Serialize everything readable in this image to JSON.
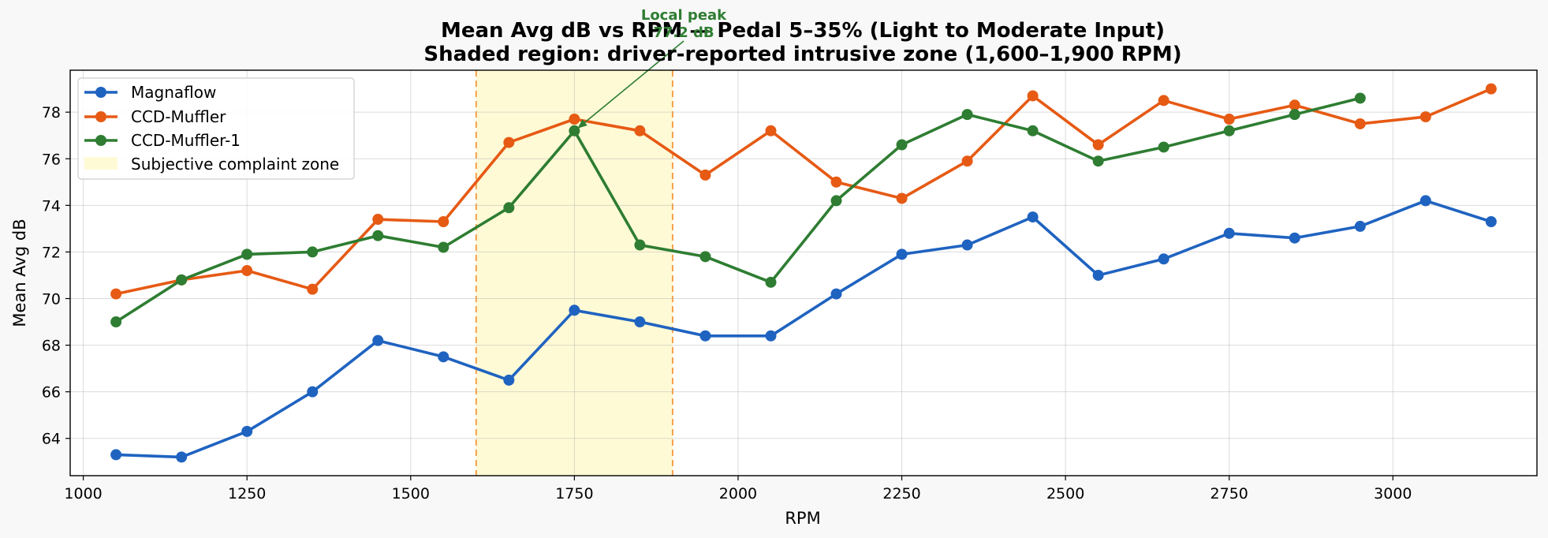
{
  "chart_data": {
    "type": "line",
    "title": "Mean Avg dB vs RPM — Pedal 5–35% (Light to Moderate Input)",
    "subtitle": "Shaded region: driver-reported intrusive zone (1,600–1,900 RPM)",
    "xlabel": "RPM",
    "ylabel": "Mean Avg dB",
    "xlim": [
      980,
      3220
    ],
    "ylim": [
      62.4,
      79.8
    ],
    "xticks": [
      1000,
      1250,
      1500,
      1750,
      2000,
      2250,
      2500,
      2750,
      3000
    ],
    "yticks": [
      64,
      66,
      68,
      70,
      72,
      74,
      76,
      78
    ],
    "grid": true,
    "legend_position": "top-left",
    "zone": {
      "label": "Subjective complaint zone",
      "x_start": 1600,
      "x_end": 1900,
      "color": "#fffad6",
      "edge_color": "#f5a04a"
    },
    "annotation": {
      "text_line1": "Local peak",
      "text_line2": "77.2 dB",
      "target_x": 1750,
      "target_y": 77.2,
      "color": "#2e7d32"
    },
    "series": [
      {
        "name": "Magnaflow",
        "color": "#1f63c0",
        "x": [
          1050,
          1150,
          1250,
          1350,
          1450,
          1550,
          1650,
          1750,
          1850,
          1950,
          2050,
          2150,
          2250,
          2350,
          2450,
          2550,
          2650,
          2750,
          2850,
          2950,
          3050,
          3150
        ],
        "values": [
          63.3,
          63.2,
          64.3,
          66.0,
          68.2,
          67.5,
          66.5,
          69.5,
          69.0,
          68.4,
          68.4,
          70.2,
          71.9,
          72.3,
          73.5,
          71.0,
          71.7,
          72.8,
          72.6,
          73.1,
          74.2,
          73.3
        ]
      },
      {
        "name": "CCD-Muffler",
        "color": "#e65a14",
        "x": [
          1050,
          1150,
          1250,
          1350,
          1450,
          1550,
          1650,
          1750,
          1850,
          1950,
          2050,
          2150,
          2250,
          2350,
          2450,
          2550,
          2650,
          2750,
          2850,
          2950,
          3050,
          3150
        ],
        "values": [
          70.2,
          70.8,
          71.2,
          70.4,
          73.4,
          73.3,
          76.7,
          77.7,
          77.2,
          75.3,
          77.2,
          75.0,
          74.3,
          75.9,
          78.7,
          76.6,
          78.5,
          77.7,
          78.3,
          77.5,
          77.8,
          79.0
        ]
      },
      {
        "name": "CCD-Muffler-1",
        "color": "#2e7d32",
        "x": [
          1050,
          1150,
          1250,
          1350,
          1450,
          1550,
          1650,
          1750,
          1850,
          1950,
          2050,
          2150,
          2250,
          2350,
          2450,
          2550,
          2650,
          2750,
          2850,
          2950
        ],
        "values": [
          69.0,
          70.8,
          71.9,
          72.0,
          72.7,
          72.2,
          73.9,
          77.2,
          72.3,
          71.8,
          70.7,
          74.2,
          76.6,
          77.9,
          77.2,
          75.9,
          76.5,
          77.2,
          77.9,
          78.6
        ]
      }
    ]
  }
}
